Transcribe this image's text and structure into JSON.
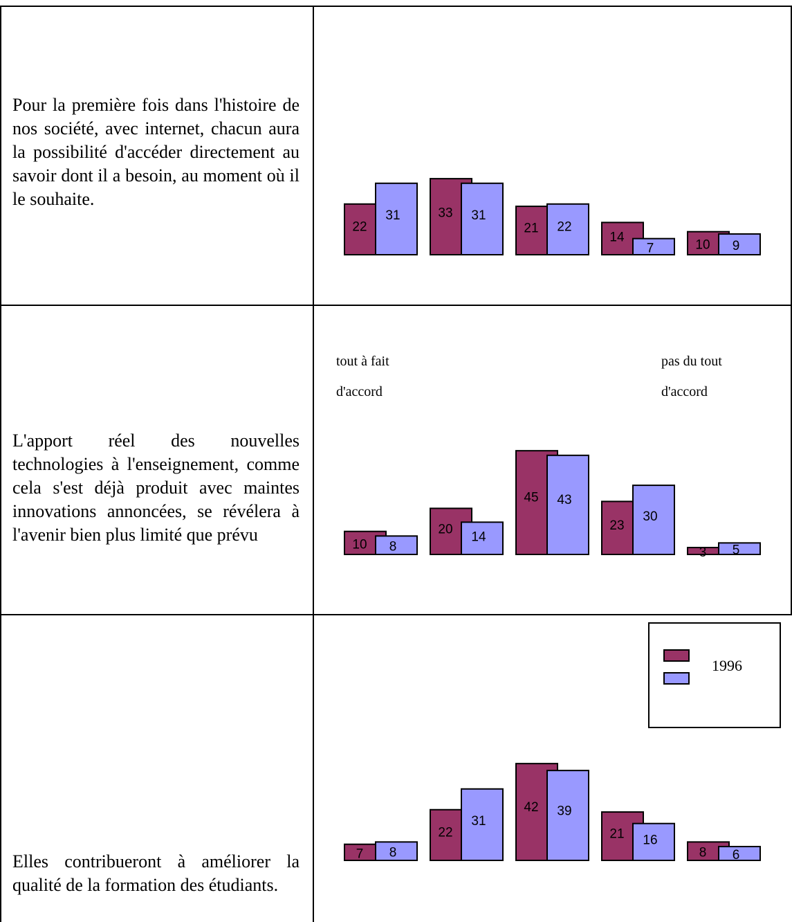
{
  "colors": {
    "series_1996": "#993366",
    "series_2": "#9999ff"
  },
  "rows": [
    {
      "statement": "Pour la première fois dans l'histoire de nos société, avec internet, chacun aura la possibilité d'accéder directement au savoir dont il a besoin, au moment où il le souhaite."
    },
    {
      "statement": "L'apport réel des nouvelles technologies à l'enseignement, comme cela s'est déjà produit avec maintes innovations annoncées, se révélera à l'avenir bien plus limité que prévu"
    },
    {
      "statement": "Elles contribueront à améliorer la qualité de la formation des étudiants."
    }
  ],
  "scale_labels": {
    "left": "tout à fait d'accord",
    "right": "pas du tout d'accord"
  },
  "legend": {
    "series_1996": "1996",
    "series_2": ""
  },
  "chart_data": [
    {
      "type": "bar",
      "series": [
        {
          "name": "1996",
          "values": [
            22,
            33,
            21,
            14,
            10
          ]
        },
        {
          "values": [
            31,
            31,
            22,
            7,
            9
          ]
        }
      ]
    },
    {
      "type": "bar",
      "series": [
        {
          "name": "1996",
          "values": [
            10,
            20,
            45,
            23,
            3
          ]
        },
        {
          "values": [
            8,
            14,
            43,
            30,
            5
          ]
        }
      ]
    },
    {
      "type": "bar",
      "series": [
        {
          "name": "1996",
          "values": [
            7,
            22,
            42,
            21,
            8
          ]
        },
        {
          "values": [
            8,
            31,
            39,
            16,
            6
          ]
        }
      ]
    }
  ]
}
